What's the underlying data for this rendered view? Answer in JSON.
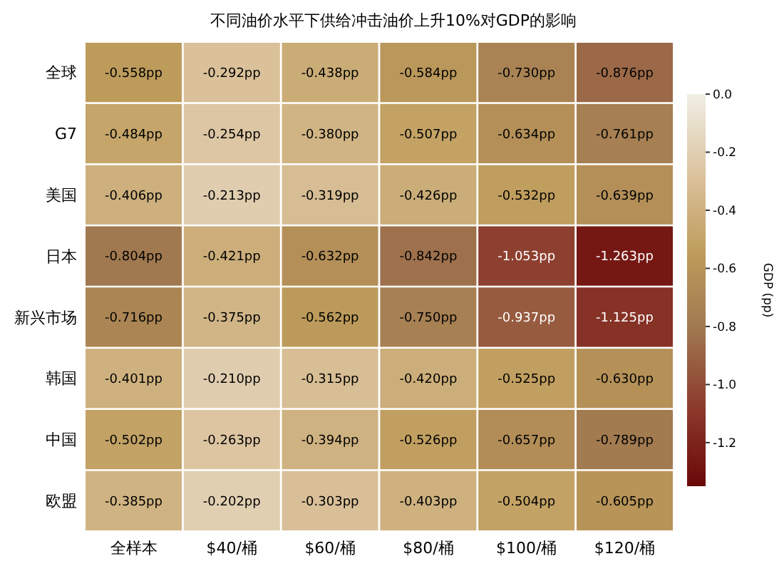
{
  "chart_data": {
    "type": "heatmap",
    "title": "不同油价水平下供给冲击油价上升10%对GDP的影响",
    "categories": [
      "全样本",
      "$40/桶",
      "$60/桶",
      "$80/桶",
      "$100/桶",
      "$120/桶"
    ],
    "y_categories": [
      "全球",
      "G7",
      "美国",
      "日本",
      "新兴市场",
      "韩国",
      "中国",
      "欧盟"
    ],
    "cells": [
      [
        -0.558,
        -0.292,
        -0.438,
        -0.584,
        -0.73,
        -0.876
      ],
      [
        -0.484,
        -0.254,
        -0.38,
        -0.507,
        -0.634,
        -0.761
      ],
      [
        -0.406,
        -0.213,
        -0.319,
        -0.426,
        -0.532,
        -0.639
      ],
      [
        -0.804,
        -0.421,
        -0.632,
        -0.842,
        -1.053,
        -1.263
      ],
      [
        -0.716,
        -0.375,
        -0.562,
        -0.75,
        -0.937,
        -1.125
      ],
      [
        -0.401,
        -0.21,
        -0.315,
        -0.42,
        -0.525,
        -0.63
      ],
      [
        -0.502,
        -0.263,
        -0.394,
        -0.526,
        -0.657,
        -0.789
      ],
      [
        -0.385,
        -0.202,
        -0.303,
        -0.403,
        -0.504,
        -0.605
      ]
    ],
    "cell_labels": [
      [
        "-0.558pp",
        "-0.292pp",
        "-0.438pp",
        "-0.584pp",
        "-0.730pp",
        "-0.876pp"
      ],
      [
        "-0.484pp",
        "-0.254pp",
        "-0.380pp",
        "-0.507pp",
        "-0.634pp",
        "-0.761pp"
      ],
      [
        "-0.406pp",
        "-0.213pp",
        "-0.319pp",
        "-0.426pp",
        "-0.532pp",
        "-0.639pp"
      ],
      [
        "-0.804pp",
        "-0.421pp",
        "-0.632pp",
        "-0.842pp",
        "-1.053pp",
        "-1.263pp"
      ],
      [
        "-0.716pp",
        "-0.375pp",
        "-0.562pp",
        "-0.750pp",
        "-0.937pp",
        "-1.125pp"
      ],
      [
        "-0.401pp",
        "-0.210pp",
        "-0.315pp",
        "-0.420pp",
        "-0.525pp",
        "-0.630pp"
      ],
      [
        "-0.502pp",
        "-0.263pp",
        "-0.394pp",
        "-0.526pp",
        "-0.657pp",
        "-0.789pp"
      ],
      [
        "-0.385pp",
        "-0.202pp",
        "-0.303pp",
        "-0.403pp",
        "-0.504pp",
        "-0.605pp"
      ]
    ],
    "clabel": "GDP (pp)",
    "clim": [
      -1.35,
      0
    ],
    "cticks": [
      {
        "value": 0,
        "label": "0.0"
      },
      -0.2,
      -0.4,
      -0.6,
      -0.8,
      {
        "value": -1.0,
        "label": "-1.0"
      },
      -1.2
    ]
  }
}
